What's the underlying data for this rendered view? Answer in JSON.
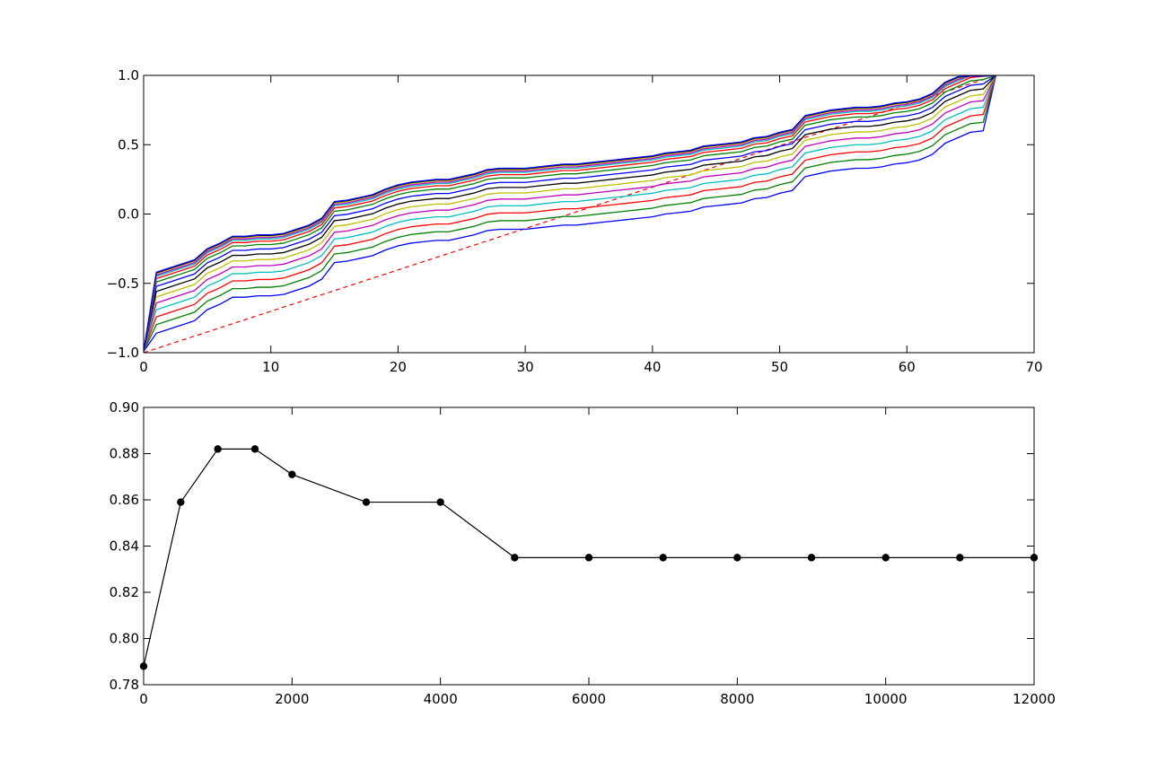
{
  "chart_data": [
    {
      "type": "line",
      "title": "",
      "xlabel": "",
      "ylabel": "",
      "xlim": [
        0,
        70
      ],
      "ylim": [
        -1.0,
        1.0
      ],
      "xticks": [
        0,
        10,
        20,
        30,
        40,
        50,
        60,
        70
      ],
      "yticks": [
        -1.0,
        -0.5,
        0.0,
        0.5,
        1.0
      ],
      "xtick_labels": [
        "0",
        "10",
        "20",
        "30",
        "40",
        "50",
        "60",
        "70"
      ],
      "ytick_labels": [
        "−1.0",
        "−0.5",
        "0.0",
        "0.5",
        "1.0"
      ],
      "grid": false,
      "reference_line": {
        "x": [
          0,
          67
        ],
        "y": [
          -1.0,
          1.0
        ],
        "color": "#ff0000",
        "style": "dashed"
      },
      "base_curve": {
        "x": [
          0,
          1,
          2,
          3,
          4,
          5,
          6,
          7,
          8,
          9,
          10,
          11,
          12,
          13,
          14,
          15,
          16,
          17,
          18,
          19,
          20,
          21,
          22,
          23,
          24,
          25,
          26,
          27,
          28,
          29,
          30,
          31,
          32,
          33,
          34,
          35,
          36,
          37,
          38,
          39,
          40,
          41,
          42,
          43,
          44,
          45,
          46,
          47,
          48,
          49,
          50,
          51,
          52,
          53,
          54,
          55,
          56,
          57,
          58,
          59,
          60,
          61,
          62,
          63,
          64,
          65,
          66,
          67
        ],
        "y": [
          -0.99,
          -0.86,
          -0.83,
          -0.8,
          -0.77,
          -0.69,
          -0.65,
          -0.6,
          -0.6,
          -0.59,
          -0.59,
          -0.58,
          -0.55,
          -0.52,
          -0.47,
          -0.35,
          -0.34,
          -0.32,
          -0.3,
          -0.26,
          -0.23,
          -0.21,
          -0.2,
          -0.19,
          -0.19,
          -0.17,
          -0.15,
          -0.12,
          -0.11,
          -0.11,
          -0.11,
          -0.1,
          -0.09,
          -0.08,
          -0.08,
          -0.07,
          -0.06,
          -0.05,
          -0.04,
          -0.03,
          -0.02,
          0.0,
          0.01,
          0.02,
          0.05,
          0.06,
          0.07,
          0.08,
          0.11,
          0.12,
          0.15,
          0.17,
          0.27,
          0.29,
          0.31,
          0.32,
          0.33,
          0.33,
          0.34,
          0.36,
          0.37,
          0.39,
          0.43,
          0.51,
          0.55,
          0.59,
          0.6,
          1.0
        ]
      },
      "series_offsets": [
        0.0,
        0.062,
        0.118,
        0.17,
        0.218,
        0.262,
        0.302,
        0.338,
        0.37,
        0.394,
        0.41,
        0.42,
        0.43,
        0.436,
        0.44
      ],
      "series_colors": [
        "#0000ff",
        "#008000",
        "#ff0000",
        "#00bfbf",
        "#bf00bf",
        "#bfbf00",
        "#000000",
        "#0000ff",
        "#008000",
        "#ff0000",
        "#00bfbf",
        "#bf00bf",
        "#bfbf00",
        "#000000",
        "#0000ff"
      ]
    },
    {
      "type": "line",
      "title": "",
      "xlabel": "",
      "ylabel": "",
      "xlim": [
        0,
        12000
      ],
      "ylim": [
        0.78,
        0.9
      ],
      "xticks": [
        0,
        2000,
        4000,
        6000,
        8000,
        10000,
        12000
      ],
      "yticks": [
        0.78,
        0.8,
        0.82,
        0.84,
        0.86,
        0.88,
        0.9
      ],
      "xtick_labels": [
        "0",
        "2000",
        "4000",
        "6000",
        "8000",
        "10000",
        "12000"
      ],
      "ytick_labels": [
        "0.78",
        "0.80",
        "0.82",
        "0.84",
        "0.86",
        "0.88",
        "0.90"
      ],
      "grid": false,
      "marker": "circle",
      "color": "#000000",
      "x": [
        0,
        500,
        1000,
        1500,
        2000,
        3000,
        4000,
        5000,
        6000,
        7000,
        8000,
        9000,
        10000,
        11000,
        12000
      ],
      "y": [
        0.788,
        0.859,
        0.882,
        0.882,
        0.871,
        0.859,
        0.859,
        0.835,
        0.835,
        0.835,
        0.835,
        0.835,
        0.835,
        0.835,
        0.835
      ]
    }
  ]
}
